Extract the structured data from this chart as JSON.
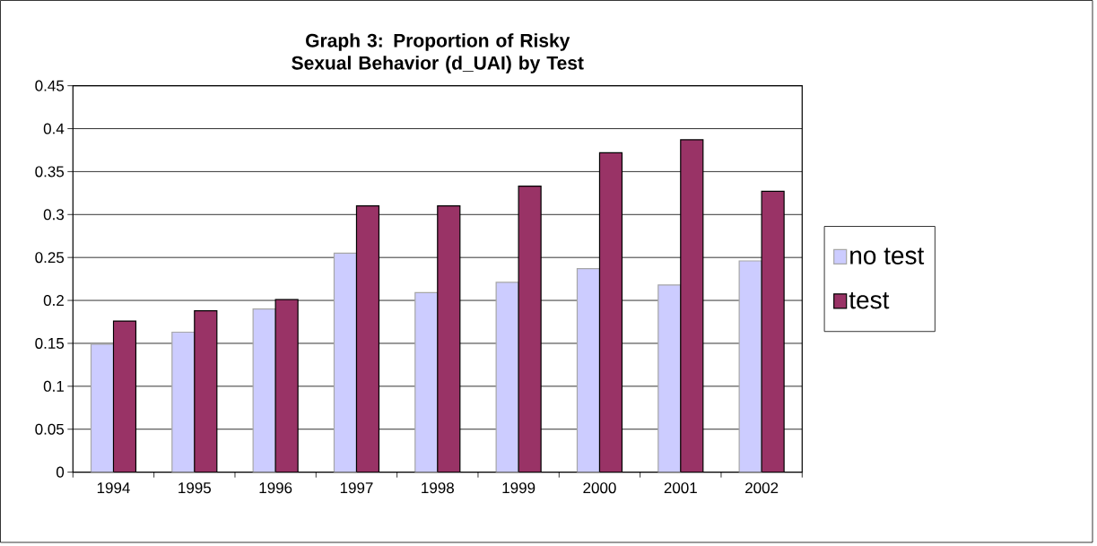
{
  "chart_data": {
    "type": "bar",
    "title": "Graph 3: Proportion of Risky Sexual  Behavior (d_UAI) by Test",
    "categories": [
      "1994",
      "1995",
      "1996",
      "1997",
      "1998",
      "1999",
      "2000",
      "2001",
      "2002"
    ],
    "series": [
      {
        "name": "no test",
        "color": "#ccccff",
        "values": [
          0.149,
          0.163,
          0.19,
          0.255,
          0.209,
          0.221,
          0.237,
          0.218,
          0.246
        ]
      },
      {
        "name": "test",
        "color": "#993366",
        "values": [
          0.176,
          0.188,
          0.201,
          0.31,
          0.31,
          0.333,
          0.372,
          0.387,
          0.327
        ]
      }
    ],
    "ylim": [
      0,
      0.45
    ],
    "yticks": [
      0,
      0.05,
      0.1,
      0.15,
      0.2,
      0.25,
      0.3,
      0.35,
      0.4,
      0.45
    ],
    "grid": "y",
    "legend": "right"
  }
}
